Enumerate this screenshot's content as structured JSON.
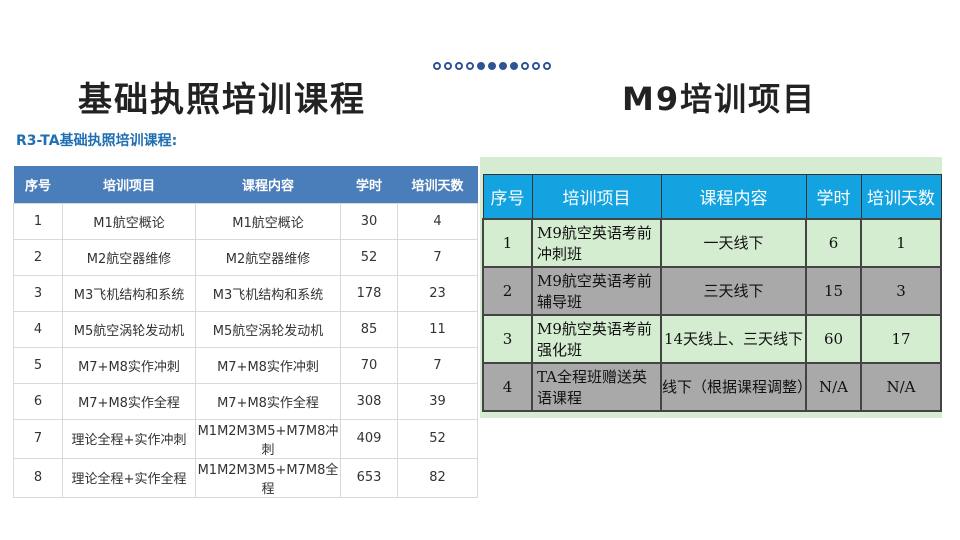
{
  "left": {
    "title": "基础执照培训课程",
    "subtitle": "R3-TA基础执照培训课程:",
    "headers": [
      "序号",
      "培训项目",
      "课程内容",
      "学时",
      "培训天数"
    ],
    "rows": [
      [
        "1",
        "M1航空概论",
        "M1航空概论",
        "30",
        "4"
      ],
      [
        "2",
        "M2航空器维修",
        "M2航空器维修",
        "52",
        "7"
      ],
      [
        "3",
        "M3飞机结构和系统",
        "M3飞机结构和系统",
        "178",
        "23"
      ],
      [
        "4",
        "M5航空涡轮发动机",
        "M5航空涡轮发动机",
        "85",
        "11"
      ],
      [
        "5",
        "M7+M8实作冲刺",
        "M7+M8实作冲刺",
        "70",
        "7"
      ],
      [
        "6",
        "M7+M8实作全程",
        "M7+M8实作全程",
        "308",
        "39"
      ],
      [
        "7",
        "理论全程+实作冲刺",
        "M1M2M3M5+M7M8冲刺",
        "409",
        "52"
      ],
      [
        "8",
        "理论全程+实作全程",
        "M1M2M3M5+M7M8全程",
        "653",
        "82"
      ]
    ]
  },
  "right": {
    "title": "M9培训项目",
    "headers": [
      "序号",
      "培训项目",
      "课程内容",
      "学时",
      "培训天数"
    ],
    "rows": [
      [
        "1",
        "M9航空英语考前冲刺班",
        "一天线下",
        "6",
        "1"
      ],
      [
        "2",
        "M9航空英语考前辅导班",
        "三天线下",
        "15",
        "3"
      ],
      [
        "3",
        "M9航空英语考前强化班",
        "14天线上、三天线下",
        "60",
        "17"
      ],
      [
        "4",
        "TA全程班赠送英语课程",
        "线下（根据课程调整）",
        "N/A",
        "N/A"
      ]
    ]
  },
  "colors": {
    "left_header": "#4a7ebb",
    "right_header": "#12a3e0",
    "right_bg": "#d6ecd2"
  }
}
